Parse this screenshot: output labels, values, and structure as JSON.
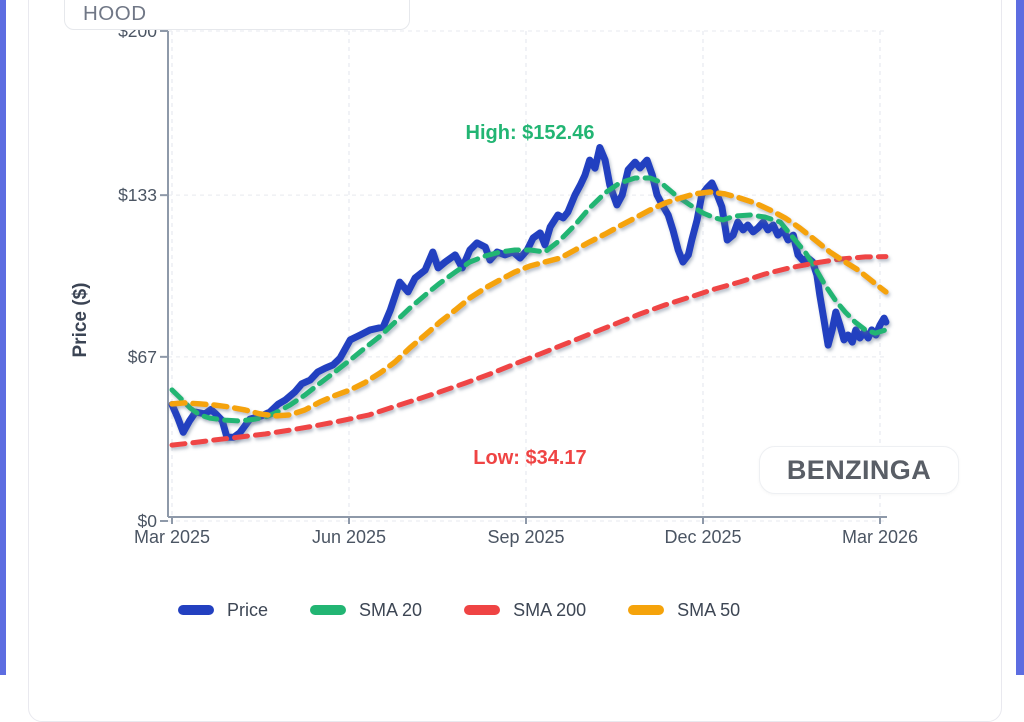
{
  "page": {
    "edge_strip_color": "#5d6de1"
  },
  "symbol_box": {
    "value": "HOOD"
  },
  "watermark": {
    "label": "BENZINGA"
  },
  "chart_data": {
    "type": "line",
    "title": "",
    "xlabel": "",
    "ylabel": "Price ($)",
    "x_unit": "months since Mar 2025",
    "x_axis": {
      "tick_labels": [
        "Mar 2025",
        "Jun 2025",
        "Sep 2025",
        "Dec 2025",
        "Mar 2026"
      ],
      "tick_positions_months": [
        0,
        3,
        6,
        9,
        12
      ]
    },
    "y_axis": {
      "tick_labels": [
        "$0",
        "$67",
        "$133",
        "$200"
      ],
      "tick_values": [
        0,
        67,
        133,
        200
      ],
      "range": [
        0,
        200
      ]
    },
    "grid": true,
    "annotations": {
      "high": {
        "label": "High: $152.46",
        "value": 152.46,
        "color": "#22b573"
      },
      "low": {
        "label": "Low: $34.17",
        "value": 34.17,
        "color": "#ef4444"
      }
    },
    "legend": [
      {
        "name": "Price",
        "color": "#2340c0",
        "dashed": false
      },
      {
        "name": "SMA 20",
        "color": "#22b573",
        "dashed": true
      },
      {
        "name": "SMA 200",
        "color": "#ef4444",
        "dashed": true
      },
      {
        "name": "SMA 50",
        "color": "#f5a30b",
        "dashed": true
      }
    ],
    "series": [
      {
        "name": "Price",
        "color": "#2340c0",
        "dashed": false,
        "width": 7,
        "points": [
          [
            0,
            47.5
          ],
          [
            0.1,
            42
          ],
          [
            0.19,
            36.2
          ],
          [
            0.3,
            41
          ],
          [
            0.4,
            44.5
          ],
          [
            0.56,
            43.7
          ],
          [
            0.66,
            45.5
          ],
          [
            0.73,
            44
          ],
          [
            0.85,
            41
          ],
          [
            0.93,
            34.2
          ],
          [
            1.05,
            34.2
          ],
          [
            1.15,
            36
          ],
          [
            1.32,
            41.6
          ],
          [
            1.45,
            42.5
          ],
          [
            1.53,
            43
          ],
          [
            1.66,
            44.5
          ],
          [
            1.8,
            47.7
          ],
          [
            1.92,
            49.4
          ],
          [
            2.08,
            52.6
          ],
          [
            2.2,
            56
          ],
          [
            2.34,
            57.5
          ],
          [
            2.47,
            60.8
          ],
          [
            2.6,
            62.4
          ],
          [
            2.73,
            63.7
          ],
          [
            2.85,
            66.5
          ],
          [
            3.02,
            73.9
          ],
          [
            3.19,
            75.9
          ],
          [
            3.36,
            78
          ],
          [
            3.58,
            79.2
          ],
          [
            3.7,
            86.1
          ],
          [
            3.86,
            97.5
          ],
          [
            4,
            93.5
          ],
          [
            4.12,
            99.2
          ],
          [
            4.29,
            102.4
          ],
          [
            4.42,
            109.8
          ],
          [
            4.51,
            103.3
          ],
          [
            4.63,
            105.7
          ],
          [
            4.8,
            108.6
          ],
          [
            4.92,
            103.3
          ],
          [
            5.05,
            110.6
          ],
          [
            5.17,
            113.5
          ],
          [
            5.31,
            111.8
          ],
          [
            5.39,
            106.5
          ],
          [
            5.51,
            109.8
          ],
          [
            5.64,
            108.6
          ],
          [
            5.78,
            109.8
          ],
          [
            5.9,
            107.3
          ],
          [
            6.02,
            110.6
          ],
          [
            6.12,
            115.5
          ],
          [
            6.24,
            117.6
          ],
          [
            6.32,
            112.7
          ],
          [
            6.41,
            120
          ],
          [
            6.54,
            124.9
          ],
          [
            6.63,
            123.7
          ],
          [
            6.71,
            126.1
          ],
          [
            6.83,
            133.1
          ],
          [
            6.92,
            137.1
          ],
          [
            7,
            141.2
          ],
          [
            7.08,
            147.3
          ],
          [
            7.17,
            144
          ],
          [
            7.25,
            152.46
          ],
          [
            7.34,
            147.3
          ],
          [
            7.42,
            137.1
          ],
          [
            7.54,
            129
          ],
          [
            7.63,
            133
          ],
          [
            7.73,
            143.3
          ],
          [
            7.85,
            146.5
          ],
          [
            7.93,
            144.1
          ],
          [
            8.05,
            147.3
          ],
          [
            8.14,
            141.2
          ],
          [
            8.22,
            133.1
          ],
          [
            8.31,
            129
          ],
          [
            8.41,
            124.9
          ],
          [
            8.49,
            118.8
          ],
          [
            8.58,
            110.6
          ],
          [
            8.66,
            105.7
          ],
          [
            8.75,
            108.6
          ],
          [
            8.81,
            114.7
          ],
          [
            8.9,
            122.9
          ],
          [
            8.98,
            133.1
          ],
          [
            9.07,
            136
          ],
          [
            9.15,
            138
          ],
          [
            9.24,
            133.1
          ],
          [
            9.32,
            128.2
          ],
          [
            9.41,
            114.7
          ],
          [
            9.51,
            116.7
          ],
          [
            9.59,
            122
          ],
          [
            9.68,
            118.8
          ],
          [
            9.76,
            120.8
          ],
          [
            9.85,
            118
          ],
          [
            9.93,
            119.6
          ],
          [
            10.02,
            122
          ],
          [
            10.1,
            118.8
          ],
          [
            10.19,
            120.8
          ],
          [
            10.27,
            116.7
          ],
          [
            10.36,
            118.8
          ],
          [
            10.44,
            114.7
          ],
          [
            10.53,
            116.7
          ],
          [
            10.61,
            108.6
          ],
          [
            10.69,
            106.5
          ],
          [
            10.78,
            107.3
          ],
          [
            10.86,
            105.7
          ],
          [
            10.93,
            100.4
          ],
          [
            10.98,
            92.2
          ],
          [
            11.05,
            82
          ],
          [
            11.12,
            71.8
          ],
          [
            11.19,
            78
          ],
          [
            11.25,
            85.3
          ],
          [
            11.32,
            80
          ],
          [
            11.39,
            73.9
          ],
          [
            11.46,
            75.9
          ],
          [
            11.53,
            73
          ],
          [
            11.59,
            78
          ],
          [
            11.66,
            74.7
          ],
          [
            11.73,
            77.1
          ],
          [
            11.8,
            74.7
          ],
          [
            11.86,
            78
          ],
          [
            11.93,
            75.9
          ],
          [
            12,
            80
          ],
          [
            12.07,
            82.8
          ],
          [
            12.1,
            81.2
          ]
        ]
      },
      {
        "name": "SMA 20",
        "color": "#22b573",
        "dashed": true,
        "width": 5,
        "points": [
          [
            0,
            53.5
          ],
          [
            0.14,
            50.2
          ],
          [
            0.31,
            46.1
          ],
          [
            0.47,
            43.3
          ],
          [
            0.64,
            42
          ],
          [
            0.9,
            41.2
          ],
          [
            1.15,
            40.8
          ],
          [
            1.41,
            41.6
          ],
          [
            1.58,
            42.4
          ],
          [
            1.75,
            44.1
          ],
          [
            2,
            47.3
          ],
          [
            2.25,
            51.4
          ],
          [
            2.51,
            56.3
          ],
          [
            2.76,
            60.8
          ],
          [
            3.02,
            65.7
          ],
          [
            3.27,
            70.6
          ],
          [
            3.53,
            75.5
          ],
          [
            3.78,
            81.2
          ],
          [
            4.03,
            86.9
          ],
          [
            4.29,
            92.2
          ],
          [
            4.54,
            97.1
          ],
          [
            4.8,
            101.6
          ],
          [
            5.05,
            105.7
          ],
          [
            5.31,
            108.2
          ],
          [
            5.56,
            109.8
          ],
          [
            5.81,
            110.6
          ],
          [
            6.07,
            110.6
          ],
          [
            6.32,
            109.8
          ],
          [
            6.58,
            114.7
          ],
          [
            6.83,
            120.8
          ],
          [
            7.08,
            127.8
          ],
          [
            7.34,
            133.9
          ],
          [
            7.59,
            138
          ],
          [
            7.85,
            140
          ],
          [
            8.1,
            140
          ],
          [
            8.27,
            138.4
          ],
          [
            8.53,
            133.1
          ],
          [
            8.78,
            129
          ],
          [
            9,
            125.7
          ],
          [
            9.2,
            123.7
          ],
          [
            9.34,
            122.9
          ],
          [
            9.54,
            124.5
          ],
          [
            9.8,
            124.9
          ],
          [
            10.05,
            124.1
          ],
          [
            10.31,
            122
          ],
          [
            10.56,
            114.7
          ],
          [
            10.73,
            109.8
          ],
          [
            10.9,
            103.3
          ],
          [
            11.07,
            96.3
          ],
          [
            11.24,
            90.2
          ],
          [
            11.41,
            85.3
          ],
          [
            11.58,
            81.2
          ],
          [
            11.75,
            78
          ],
          [
            11.92,
            76.7
          ],
          [
            12.1,
            78
          ]
        ]
      },
      {
        "name": "SMA 200",
        "color": "#ef4444",
        "dashed": true,
        "width": 5,
        "points": [
          [
            0,
            31
          ],
          [
            0.31,
            31.8
          ],
          [
            0.73,
            33.1
          ],
          [
            1.15,
            34.3
          ],
          [
            1.58,
            35.5
          ],
          [
            2,
            37.1
          ],
          [
            2.42,
            38.8
          ],
          [
            2.85,
            40.8
          ],
          [
            3.34,
            43.3
          ],
          [
            3.69,
            46.1
          ],
          [
            4.12,
            49.4
          ],
          [
            4.54,
            52.7
          ],
          [
            4.97,
            56.3
          ],
          [
            5.39,
            60
          ],
          [
            5.81,
            64.1
          ],
          [
            6.24,
            68.2
          ],
          [
            6.66,
            72.2
          ],
          [
            7.08,
            76.3
          ],
          [
            7.51,
            80.4
          ],
          [
            7.93,
            84.5
          ],
          [
            8.36,
            88.2
          ],
          [
            8.78,
            91.4
          ],
          [
            9.2,
            94.7
          ],
          [
            9.63,
            97.6
          ],
          [
            10.05,
            100.8
          ],
          [
            10.47,
            103.3
          ],
          [
            10.9,
            105.3
          ],
          [
            11.32,
            106.9
          ],
          [
            11.75,
            107.8
          ],
          [
            12.1,
            107.9
          ]
        ]
      },
      {
        "name": "SMA 50",
        "color": "#f5a30b",
        "dashed": true,
        "width": 5.5,
        "points": [
          [
            0,
            47.8
          ],
          [
            0.22,
            48.2
          ],
          [
            0.47,
            47.8
          ],
          [
            0.73,
            47.3
          ],
          [
            0.98,
            46.5
          ],
          [
            1.24,
            45.3
          ],
          [
            1.49,
            43.7
          ],
          [
            1.75,
            42.9
          ],
          [
            2,
            43.3
          ],
          [
            2.25,
            45.3
          ],
          [
            2.51,
            48.6
          ],
          [
            2.76,
            51.2
          ],
          [
            3.02,
            53.5
          ],
          [
            3.27,
            56.5
          ],
          [
            3.53,
            60.5
          ],
          [
            3.78,
            64.9
          ],
          [
            4.03,
            70.6
          ],
          [
            4.29,
            75.9
          ],
          [
            4.54,
            81.2
          ],
          [
            4.8,
            86.1
          ],
          [
            5.05,
            91
          ],
          [
            5.31,
            95.1
          ],
          [
            5.56,
            98.4
          ],
          [
            5.81,
            101.6
          ],
          [
            6.07,
            104.1
          ],
          [
            6.32,
            105.7
          ],
          [
            6.58,
            107.3
          ],
          [
            6.83,
            110.6
          ],
          [
            7.08,
            113.9
          ],
          [
            7.34,
            117.1
          ],
          [
            7.59,
            120.4
          ],
          [
            7.85,
            123.7
          ],
          [
            8.1,
            126.9
          ],
          [
            8.36,
            129.8
          ],
          [
            8.61,
            131.8
          ],
          [
            8.86,
            133.5
          ],
          [
            9.12,
            134.3
          ],
          [
            9.37,
            133.5
          ],
          [
            9.63,
            131.8
          ],
          [
            9.88,
            129.8
          ],
          [
            10.14,
            126.9
          ],
          [
            10.39,
            123.7
          ],
          [
            10.64,
            119.6
          ],
          [
            10.9,
            114.7
          ],
          [
            11.15,
            109.8
          ],
          [
            11.41,
            105.7
          ],
          [
            11.63,
            102.4
          ],
          [
            11.8,
            99.2
          ],
          [
            11.97,
            95.9
          ],
          [
            12.1,
            93.5
          ]
        ]
      }
    ]
  }
}
